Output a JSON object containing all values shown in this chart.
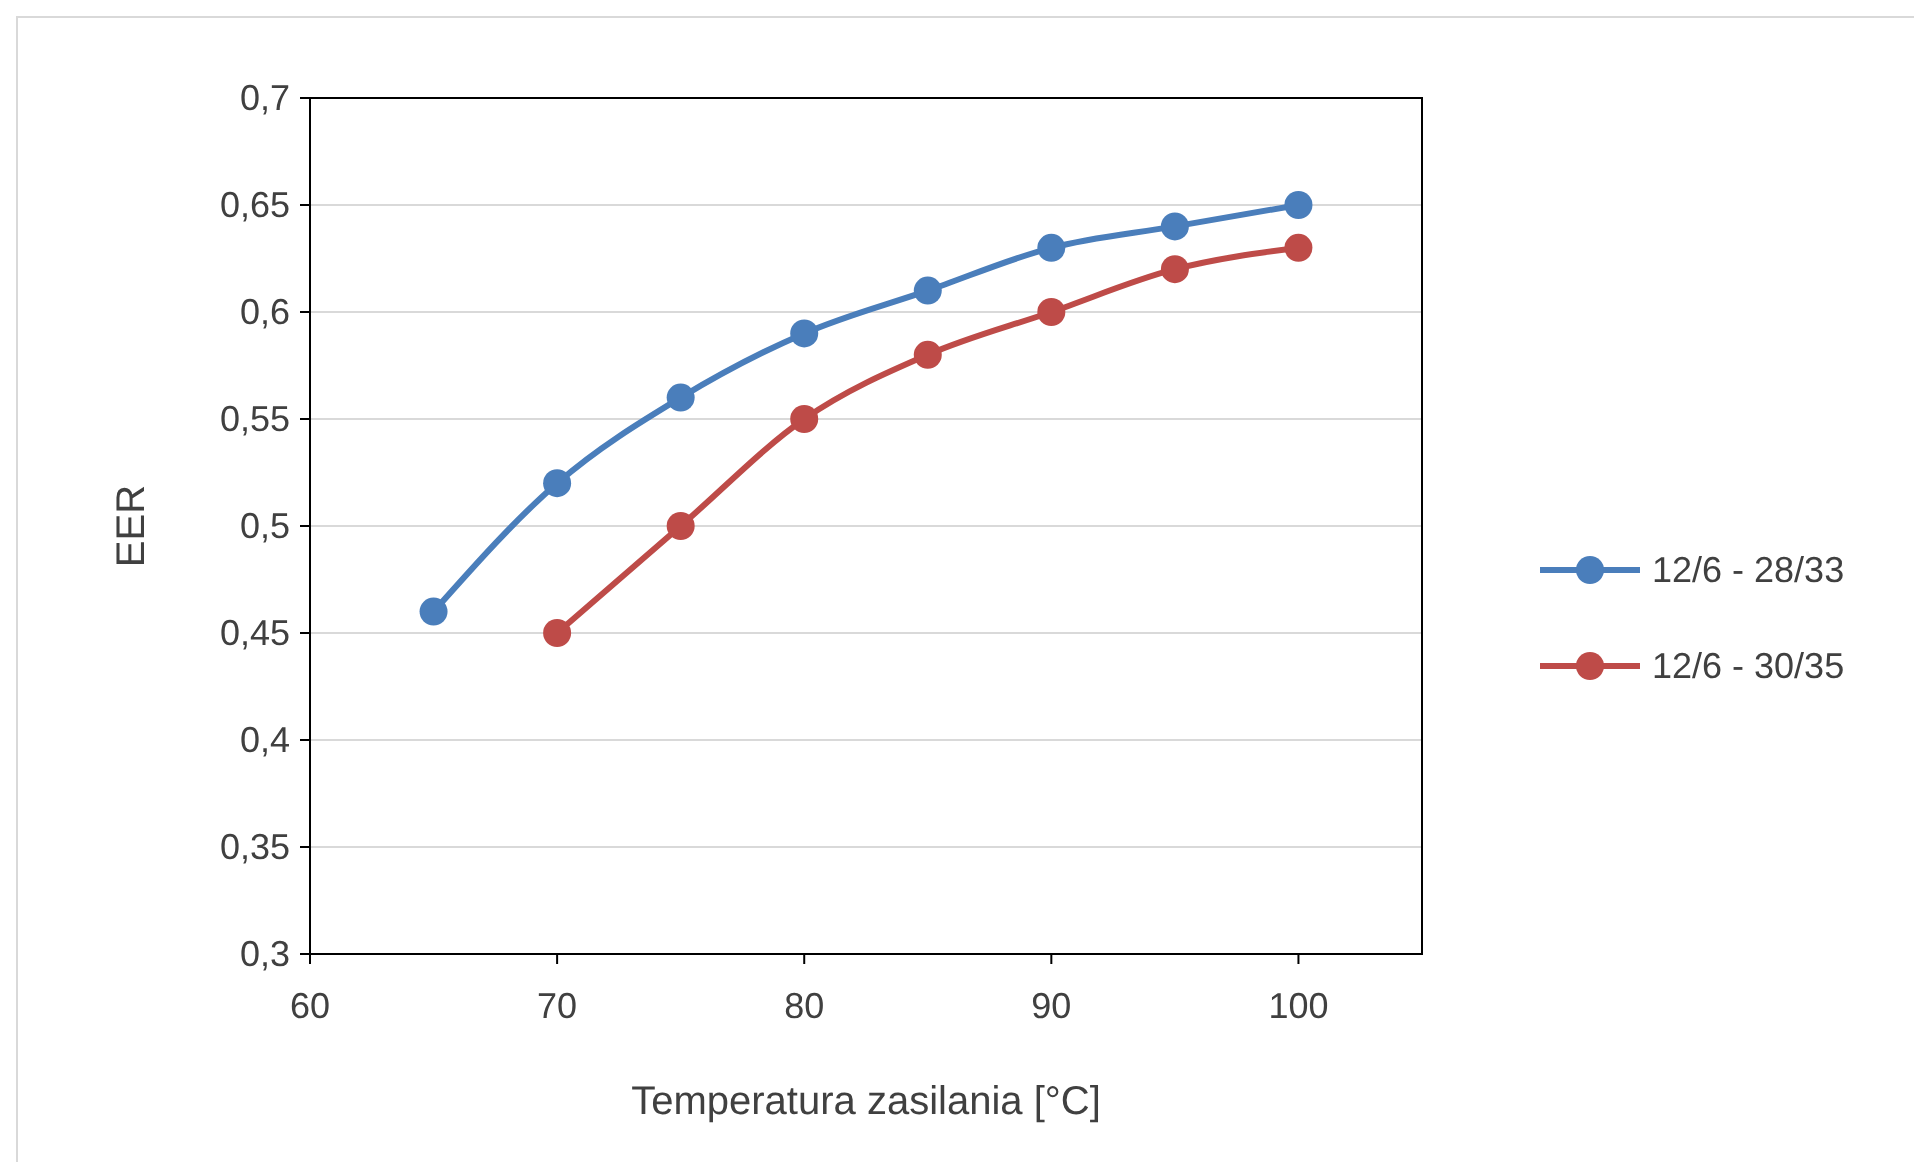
{
  "chart_data": {
    "type": "line",
    "xlabel": "Temperatura zasilania [°C]",
    "ylabel": "EER",
    "xlim": [
      60,
      105
    ],
    "xticks": [
      60,
      70,
      80,
      90,
      100
    ],
    "ylim": [
      0.3,
      0.7
    ],
    "yticks": [
      {
        "value": 0.3,
        "label": "0,3"
      },
      {
        "value": 0.35,
        "label": "0,35"
      },
      {
        "value": 0.4,
        "label": "0,4"
      },
      {
        "value": 0.45,
        "label": "0,45"
      },
      {
        "value": 0.5,
        "label": "0,5"
      },
      {
        "value": 0.55,
        "label": "0,55"
      },
      {
        "value": 0.6,
        "label": "0,6"
      },
      {
        "value": 0.65,
        "label": "0,65"
      },
      {
        "value": 0.7,
        "label": "0,7"
      }
    ],
    "grid": "y",
    "legend": "right",
    "marker": "circle",
    "line_style": "solid",
    "series": [
      {
        "name": "12/6 - 28/33",
        "color": "#4a7ebb",
        "x": [
          65,
          70,
          75,
          80,
          85,
          90,
          95,
          100
        ],
        "values": [
          0.46,
          0.52,
          0.56,
          0.59,
          0.61,
          0.63,
          0.64,
          0.65
        ]
      },
      {
        "name": "12/6 - 30/35",
        "color": "#be4b48",
        "x": [
          70,
          75,
          80,
          85,
          90,
          95,
          100
        ],
        "values": [
          0.45,
          0.5,
          0.55,
          0.58,
          0.6,
          0.62,
          0.63
        ]
      }
    ]
  }
}
